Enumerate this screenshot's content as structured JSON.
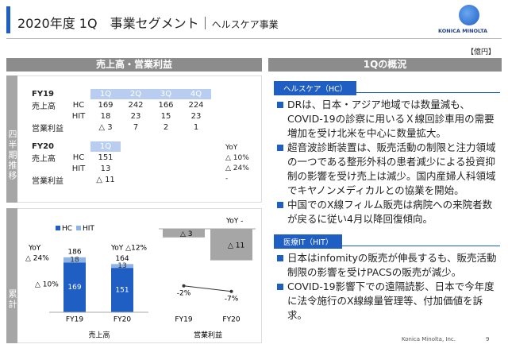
{
  "header": {
    "title": "2020年度 1Q　事業セグメント",
    "separator": "｜",
    "subtitle": "ヘルスケア事業"
  },
  "logo": "KONICA MINOLTA",
  "unit": "【億円】",
  "left_panel": {
    "title": "売上高・営業利益",
    "quarterly_label": "四半期推移",
    "cumulative_label": "累計"
  },
  "fy19_table": {
    "year": "FY19",
    "columns": [
      "1Q",
      "2Q",
      "3Q",
      "4Q"
    ],
    "rows": [
      {
        "group": "売上高",
        "label": "HC",
        "values": [
          "169",
          "242",
          "166",
          "224"
        ]
      },
      {
        "group": null,
        "label": "HIT",
        "values": [
          "18",
          "23",
          "15",
          "23"
        ]
      },
      {
        "group": "営業利益",
        "label": null,
        "values": [
          "△ 3",
          "7",
          "2",
          "1"
        ]
      }
    ]
  },
  "fy20_table": {
    "year": "FY20",
    "columns": [
      "1Q"
    ],
    "rows": [
      {
        "group": "売上高",
        "label": "HC",
        "values": [
          "151"
        ]
      },
      {
        "group": null,
        "label": "HIT",
        "values": [
          "13"
        ]
      },
      {
        "group": "営業利益",
        "label": null,
        "values": [
          "△ 11"
        ]
      }
    ],
    "yoy": {
      "label": "YoY",
      "values": [
        "△ 10%",
        "△ 24%",
        "-"
      ]
    }
  },
  "sales_chart": {
    "type": "bar",
    "categories": [
      "FY19",
      "FY20"
    ],
    "axis_label": "売上高",
    "series": [
      {
        "name": "HC",
        "color": "#1f5fc4",
        "values": [
          169,
          151
        ]
      },
      {
        "name": "HIT",
        "color": "#8fb4e3",
        "values": [
          18,
          13
        ]
      }
    ],
    "totals": [
      186,
      164
    ],
    "annotations": [
      "YoY",
      "△ 24%",
      "△ 10%",
      "YoY △12%"
    ]
  },
  "op_chart": {
    "type": "bar",
    "categories": [
      "FY19",
      "FY20"
    ],
    "axis_label": "営業利益",
    "color": "#a6a6a6",
    "values": [
      -3,
      -11
    ],
    "value_labels": [
      "△ 3",
      "△ 11"
    ],
    "margin": {
      "values": [
        -2,
        -7
      ],
      "value_labels": [
        "-2%",
        "-7%"
      ]
    },
    "annotation": "YoY -"
  },
  "right_panel": {
    "title": "1Qの概況",
    "sections": [
      {
        "heading": "ヘルスケア（HC）",
        "bullets": [
          "DRは、日本・アジア地域では数量減も、COVID-19の診察に用いるＸ線回診車用の需要増加を受け北米を中心に数量拡大。",
          "超音波診断装置は、販売活動の制限と注力領域の一つである整形外科の患者減少による投資抑制の影響を受け売上は減少。国内産婦人科領域でキヤノンメディカルとの協業を開始。",
          "中国でのX線フィルム販売は病院への来院者数が戻るに従い4月以降回復傾向。"
        ]
      },
      {
        "heading": "医療IT（HIT）",
        "bullets": [
          "日本はinfomityの販売が伸長するも、販売活動制限の影響を受けPACSの販売が減少。",
          "COVID-19影響下での遠隔読影、日本で今年度に法令施行のX線線量管理等、付加価値を訴求。"
        ]
      }
    ]
  },
  "footer": {
    "company": "Konica Minolta, Inc.",
    "page": "9"
  }
}
